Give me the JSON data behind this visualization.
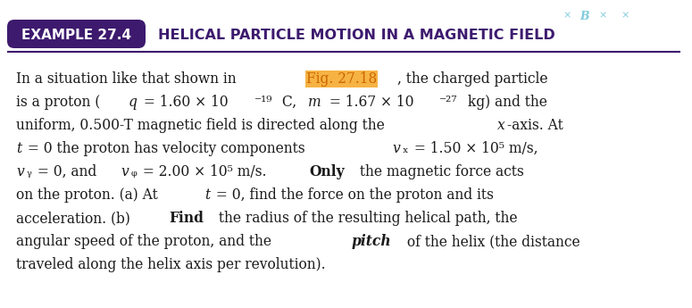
{
  "title_box_text": "EXAMPLE 27.4",
  "title_main_text": "HELICAL PARTICLE MOTION IN A MAGNETIC FIELD",
  "title_box_color": "#3d1a6e",
  "title_text_color": "#ffffff",
  "title_main_color": "#3d1a6e",
  "header_line_color": "#3d1a6e",
  "bg_color": "#ffffff",
  "highlight_color": "#f5a623",
  "top_right_text": "× ×   ×",
  "top_right_bold": "× B ×   ×",
  "top_right_color": "#7ecbdc",
  "body_lines": [
    "In a situation like that shown in Fig. 27.18, the charged particle",
    "is a proton (q = 1.60 × 10⁻¹⁹ C, m = 1.67 × 10⁻²⁷ kg) and the",
    "uniform, 0.500-T magnetic field is directed along the x-axis. At",
    "t = 0 the proton has velocity components vₓ = 1.50 × 10⁵ m/s,",
    "vᵧ = 0, and vᵩ = 2.00 × 10⁵ m/s. Only the magnetic force acts",
    "on the proton. (a) At t = 0, find the force on the proton and its",
    "acceleration. (b) Find the radius of the resulting helical path, the",
    "angular speed of the proton, and the pitch of the helix (the distance",
    "traveled along the helix axis per revolution)."
  ]
}
